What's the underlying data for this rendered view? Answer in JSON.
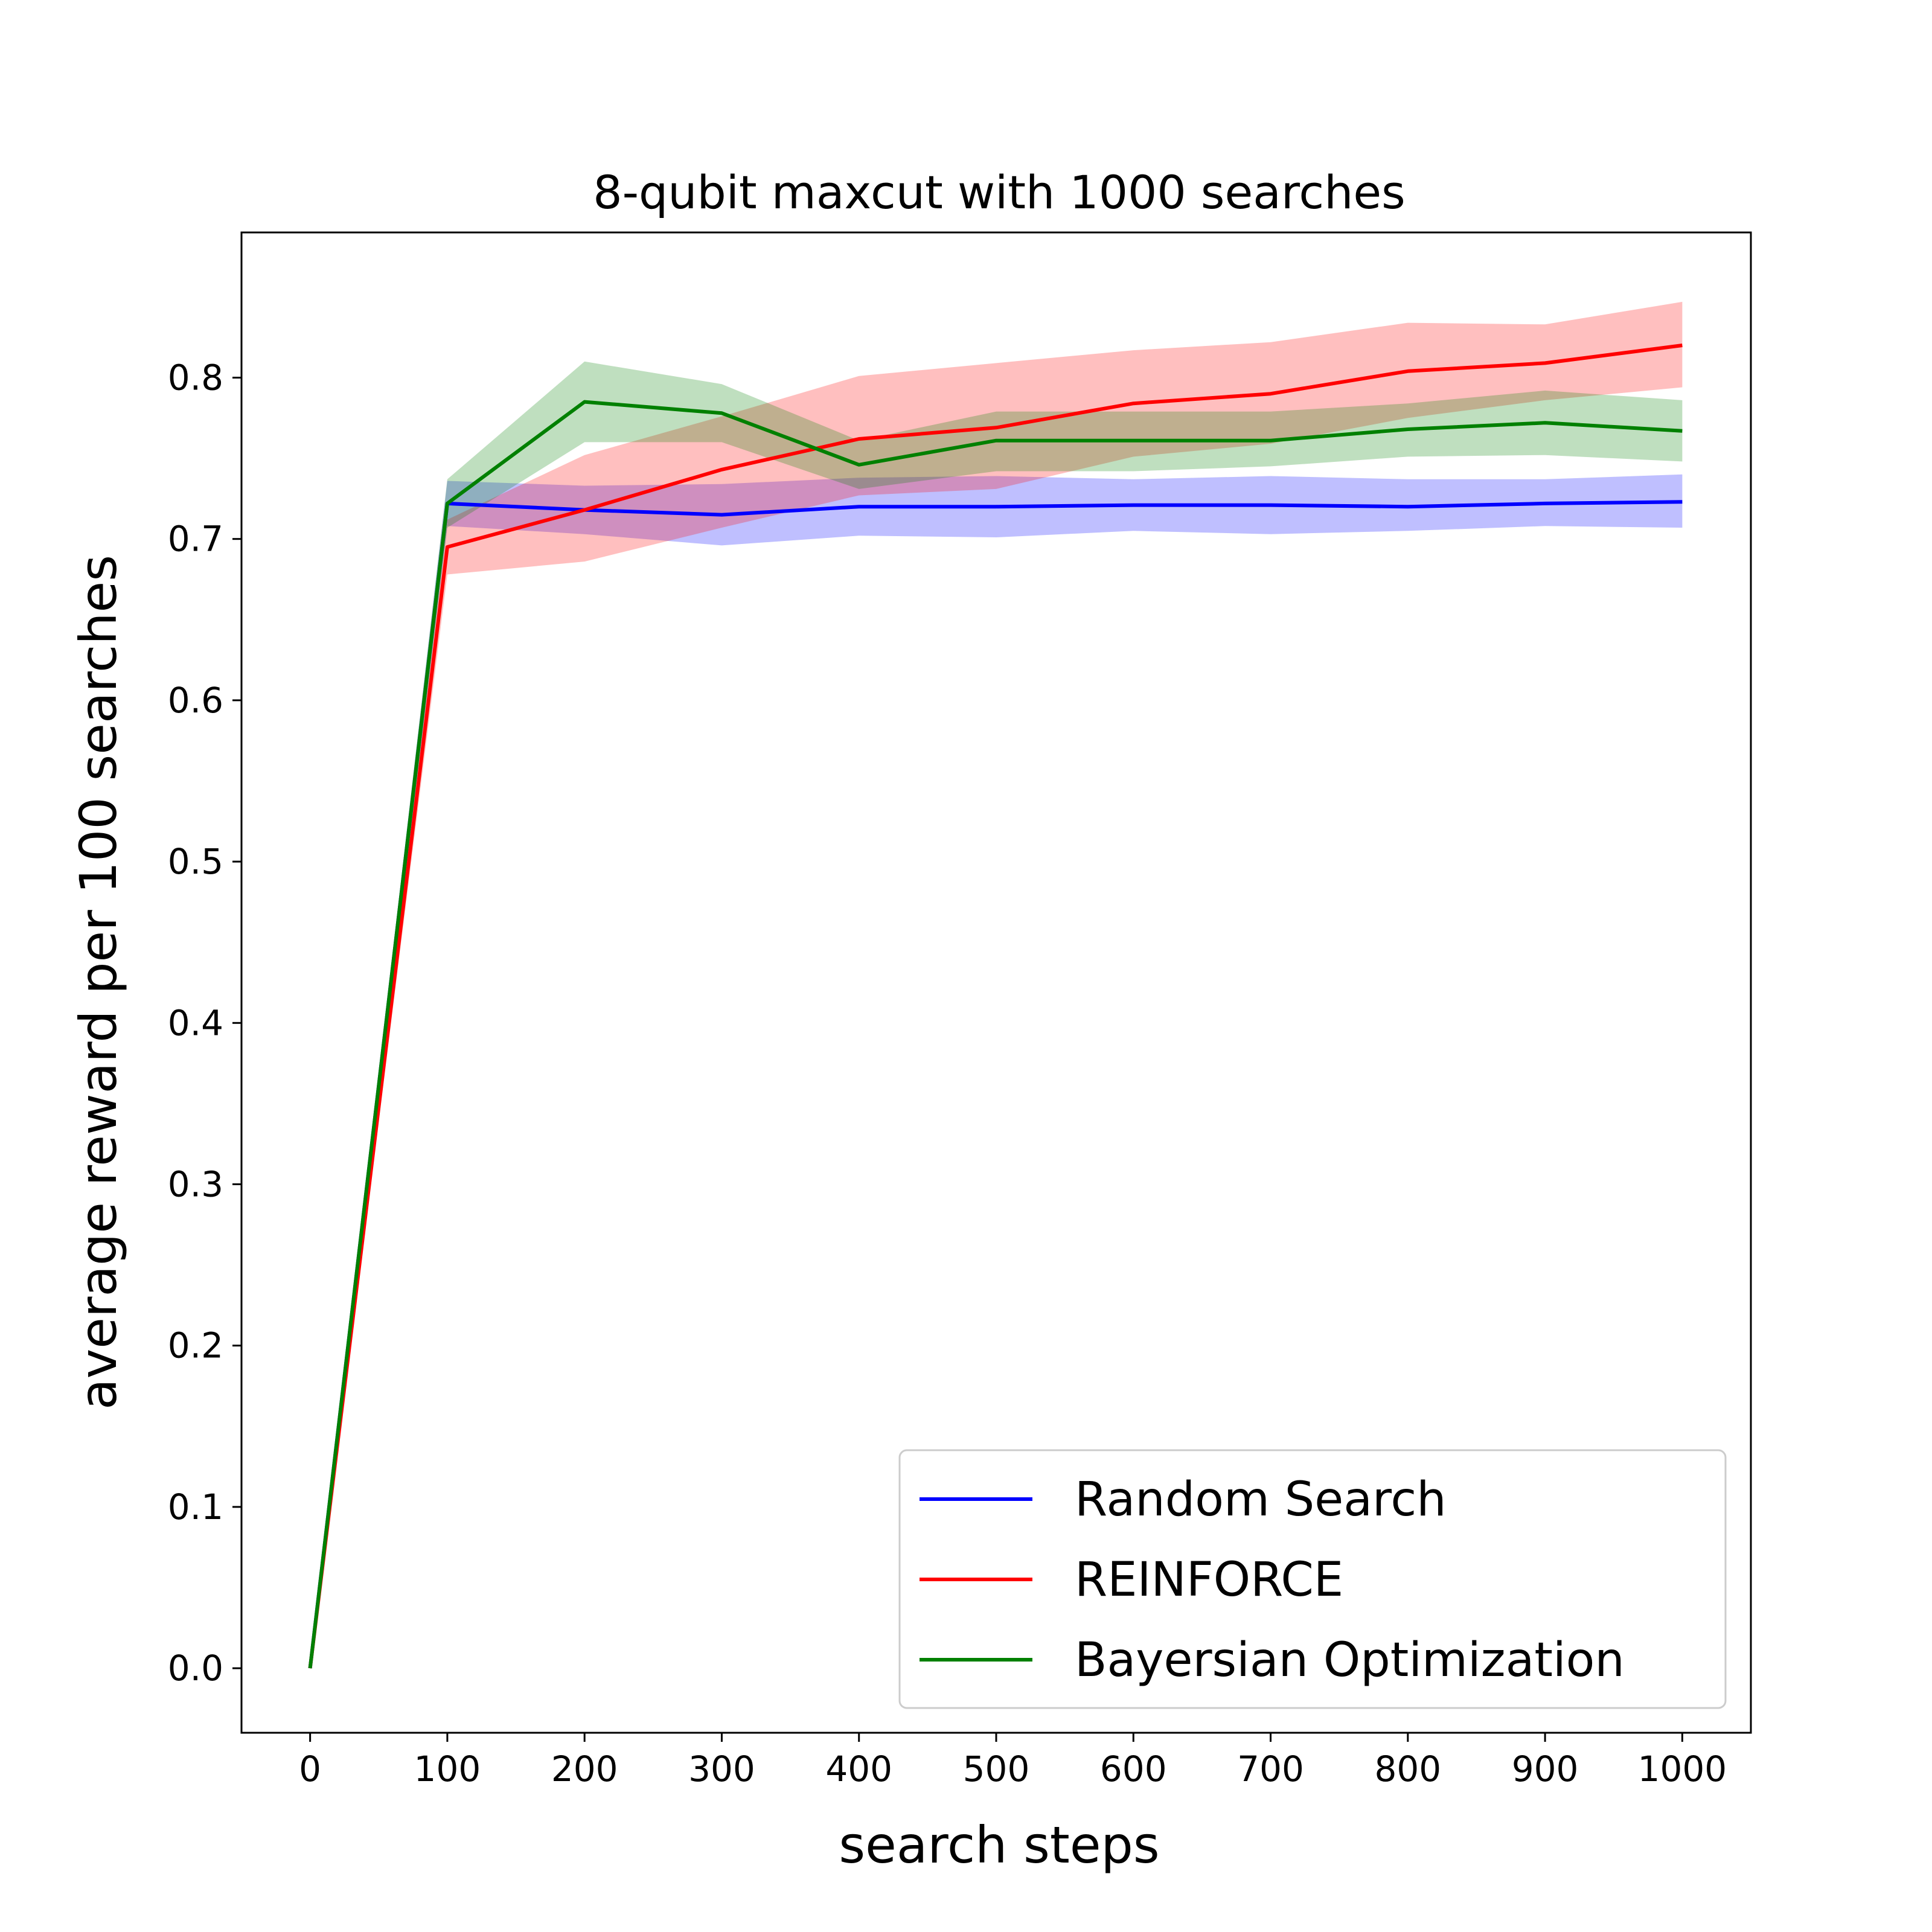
{
  "chart_data": {
    "type": "line",
    "title": "8-qubit maxcut with 1000 searches",
    "xlabel": "search steps",
    "ylabel": "average reward per 100 searches",
    "x": [
      0,
      100,
      200,
      300,
      400,
      500,
      600,
      700,
      800,
      900,
      1000
    ],
    "xticks": [
      "0",
      "100",
      "200",
      "300",
      "400",
      "500",
      "600",
      "700",
      "800",
      "900",
      "1000"
    ],
    "yticks": [
      "0.0",
      "0.1",
      "0.2",
      "0.3",
      "0.4",
      "0.5",
      "0.6",
      "0.7",
      "0.8"
    ],
    "xlim": [
      -50,
      1050
    ],
    "ylim": [
      -0.04,
      0.89
    ],
    "grid": false,
    "legend_position": "lower-right",
    "series": [
      {
        "name": "Random Search",
        "color": "#0000ff",
        "values": [
          0.0,
          0.722,
          0.718,
          0.715,
          0.72,
          0.72,
          0.721,
          0.721,
          0.72,
          0.722,
          0.723
        ],
        "lower": [
          0.0,
          0.708,
          0.703,
          0.696,
          0.702,
          0.701,
          0.705,
          0.703,
          0.705,
          0.708,
          0.707
        ],
        "upper": [
          0.0,
          0.736,
          0.733,
          0.734,
          0.738,
          0.739,
          0.737,
          0.739,
          0.737,
          0.737,
          0.74
        ]
      },
      {
        "name": "REINFORCE",
        "color": "#ff0000",
        "values": [
          0.0,
          0.695,
          0.718,
          0.743,
          0.762,
          0.769,
          0.784,
          0.79,
          0.804,
          0.809,
          0.82
        ],
        "lower": [
          0.0,
          0.678,
          0.686,
          0.707,
          0.727,
          0.731,
          0.751,
          0.759,
          0.775,
          0.786,
          0.794
        ],
        "upper": [
          0.0,
          0.712,
          0.752,
          0.776,
          0.801,
          0.809,
          0.817,
          0.822,
          0.834,
          0.833,
          0.847
        ]
      },
      {
        "name": "Bayersian Optimization",
        "color": "#008000",
        "values": [
          0.0,
          0.722,
          0.785,
          0.778,
          0.746,
          0.761,
          0.761,
          0.761,
          0.768,
          0.772,
          0.767
        ],
        "lower": [
          0.0,
          0.707,
          0.76,
          0.76,
          0.731,
          0.742,
          0.742,
          0.745,
          0.751,
          0.752,
          0.748
        ],
        "upper": [
          0.0,
          0.737,
          0.81,
          0.796,
          0.761,
          0.779,
          0.779,
          0.779,
          0.784,
          0.792,
          0.786
        ]
      }
    ]
  }
}
